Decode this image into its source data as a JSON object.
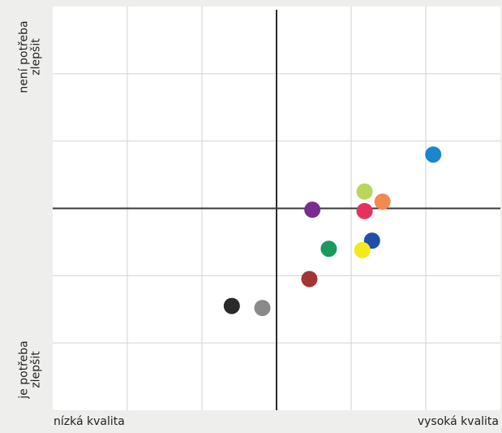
{
  "chart_data": {
    "type": "scatter",
    "title": "",
    "xlabel": "",
    "ylabel": "",
    "x_axis": {
      "low_label": "nízká kvalita",
      "high_label": "vysoká kvalita"
    },
    "y_axis": {
      "top_label_lines": [
        "není potřeba",
        "zlepšit"
      ],
      "bottom_label_lines": [
        "je potřeba",
        "zlepšit"
      ]
    },
    "xlim": [
      -3,
      3
    ],
    "ylim": [
      -3,
      3
    ],
    "grid": true,
    "legend": "none",
    "points": [
      {
        "x": 2.1,
        "y": 0.8,
        "color": "#1a86d0"
      },
      {
        "x": 1.18,
        "y": 0.25,
        "color": "#b8d65a"
      },
      {
        "x": 1.42,
        "y": 0.1,
        "color": "#f08a50"
      },
      {
        "x": 1.18,
        "y": -0.04,
        "color": "#e6305e"
      },
      {
        "x": 0.48,
        "y": -0.02,
        "color": "#7b2d8f"
      },
      {
        "x": 1.28,
        "y": -0.48,
        "color": "#1f4fa8"
      },
      {
        "x": 0.7,
        "y": -0.6,
        "color": "#1a9a5c"
      },
      {
        "x": 1.15,
        "y": -0.62,
        "color": "#f2ea1a"
      },
      {
        "x": 0.44,
        "y": -1.05,
        "color": "#a33535"
      },
      {
        "x": -0.6,
        "y": -1.45,
        "color": "#2a2a2a"
      },
      {
        "x": -0.19,
        "y": -1.48,
        "color": "#8a8a8a"
      }
    ]
  }
}
